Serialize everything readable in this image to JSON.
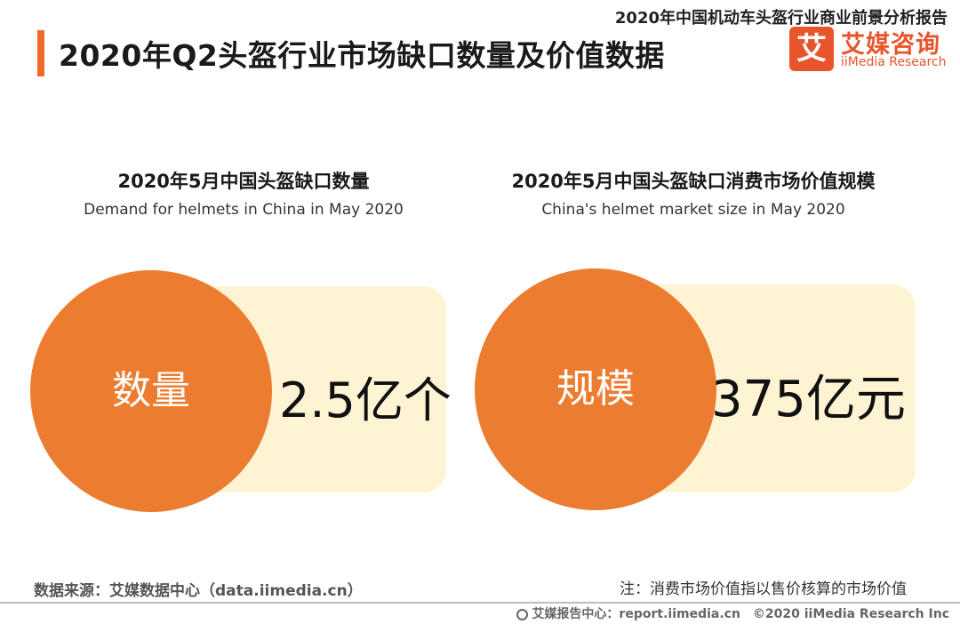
{
  "report_name": "2020年中国机动车头盔行业商业前景分析报告",
  "page_title": "2020年Q2头盔行业市场缺口数量及价值数据",
  "logo": {
    "mark": "艾",
    "name_cn": "艾媒咨询",
    "name_en": "iiMedia Research"
  },
  "chart_data": [
    {
      "type": "table",
      "title": "2020年5月中国头盔缺口数量",
      "subtitle": "Demand for helmets in China in May 2020",
      "label": "数量",
      "value_text": "2.5亿个",
      "value": 2.5,
      "unit": "亿个"
    },
    {
      "type": "table",
      "title": "2020年5月中国头盔缺口消费市场价值规模",
      "subtitle": "China's helmet market size in May 2020",
      "label": "规模",
      "value_text": "375亿元",
      "value": 375,
      "unit": "亿元"
    }
  ],
  "source": "数据来源：艾媒数据中心（data.iimedia.cn）",
  "note": "注：消费市场价值指以售价核算的市场价值",
  "footer": "艾媒报告中心：report.iimedia.cn　©2020  iiMedia Research  Inc",
  "colors": {
    "accent": "#f06b2a",
    "circle": "#ec7d30",
    "value_box": "#fef3d3",
    "logo": "#e8542c"
  }
}
